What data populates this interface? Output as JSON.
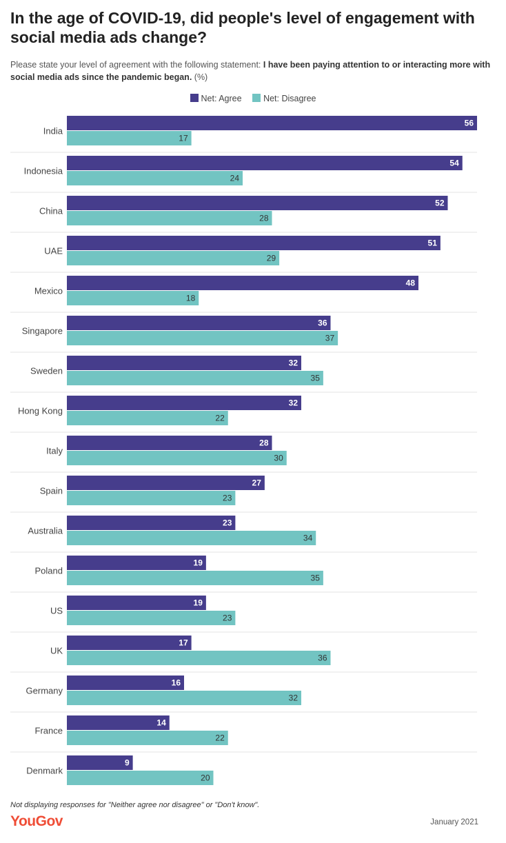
{
  "header": {
    "title": "In the age of COVID-19, did people's level of engagement with social media ads change?",
    "subtitle_prefix": "Please state your level of agreement with the following statement:",
    "subtitle_bold": "I have been paying attention to or interacting more with social media ads since the pandemic began.",
    "subtitle_unit": "(%)"
  },
  "legend": {
    "agree": "Net: Agree",
    "disagree": "Net: Disagree"
  },
  "colors": {
    "agree": "#463d8c",
    "disagree": "#72c4c2",
    "brand": "#ef4d36"
  },
  "footer": {
    "note": "Not displaying responses for \"Neither agree nor disagree\" or \"Don't know\".",
    "brand": "YouGov",
    "date": "January 2021"
  },
  "chart_data": {
    "type": "bar",
    "orientation": "horizontal",
    "title": "In the age of COVID-19, did people's level of engagement with social media ads change?",
    "xlabel": "",
    "ylabel": "",
    "xlim": [
      0,
      56
    ],
    "legend_position": "top-center",
    "categories": [
      "India",
      "Indonesia",
      "China",
      "UAE",
      "Mexico",
      "Singapore",
      "Sweden",
      "Hong Kong",
      "Italy",
      "Spain",
      "Australia",
      "Poland",
      "US",
      "UK",
      "Germany",
      "France",
      "Denmark"
    ],
    "series": [
      {
        "name": "Net: Agree",
        "values": [
          56,
          54,
          52,
          51,
          48,
          36,
          32,
          32,
          28,
          27,
          23,
          19,
          19,
          17,
          16,
          14,
          9
        ]
      },
      {
        "name": "Net: Disagree",
        "values": [
          17,
          24,
          28,
          29,
          18,
          37,
          35,
          22,
          30,
          23,
          34,
          35,
          23,
          36,
          32,
          22,
          20
        ]
      }
    ]
  }
}
